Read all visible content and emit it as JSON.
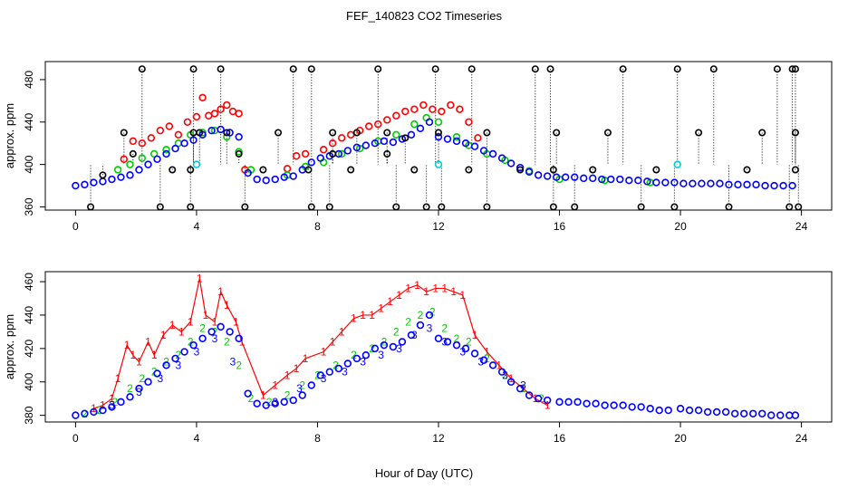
{
  "chart_data": {
    "title": "FEF_140823  CO2 Timeseries",
    "xlabel": "Hour of Day (UTC)",
    "xlim": [
      -1,
      25
    ],
    "xticks": [
      0,
      4,
      8,
      12,
      16,
      20,
      24
    ],
    "panels": [
      {
        "type": "scatter",
        "ylabel": "approx. ppm",
        "ylim": [
          357,
          497
        ],
        "yticks": [
          360,
          400,
          440,
          480
        ],
        "marker": "circle",
        "series": [
          {
            "name": "series-1",
            "color": "#ff0000",
            "x": [
              1.6,
              1.9,
              2.2,
              2.5,
              2.8,
              3.1,
              3.4,
              3.7,
              4.0,
              4.2,
              4.4,
              4.6,
              4.8,
              5.0,
              5.2,
              5.4,
              5.6,
              7.0,
              7.3,
              7.6,
              8.2,
              8.5,
              8.8,
              9.1,
              9.4,
              9.7,
              10.0,
              10.3,
              10.6,
              10.9,
              11.2,
              11.5,
              11.8,
              12.1,
              12.4,
              12.7,
              13.0,
              13.3
            ],
            "y": [
              405,
              422,
              420,
              425,
              432,
              436,
              428,
              440,
              445,
              463,
              446,
              448,
              452,
              456,
              450,
              448,
              395,
              396,
              408,
              410,
              414,
              420,
              425,
              428,
              432,
              436,
              438,
              442,
              446,
              450,
              452,
              456,
              452,
              450,
              456,
              452,
              440,
              425
            ]
          },
          {
            "name": "series-2",
            "color": "#00cc00",
            "x": [
              1.4,
              1.8,
              2.2,
              2.6,
              3.0,
              3.4,
              3.8,
              4.2,
              4.6,
              5.0,
              5.4,
              5.8,
              7.0,
              7.6,
              8.2,
              8.8,
              9.4,
              10.0,
              10.6,
              11.2,
              11.6,
              12.0,
              12.6,
              13.0,
              13.6,
              14.2,
              15.0,
              16.0,
              17.5,
              19.0
            ],
            "y": [
              395,
              400,
              406,
              410,
              414,
              420,
              428,
              430,
              432,
              426,
              412,
              395,
              390,
              398,
              402,
              410,
              415,
              422,
              428,
              438,
              444,
              440,
              426,
              418,
              410,
              404,
              394,
              386,
              385,
              383
            ]
          },
          {
            "name": "series-3",
            "color": "#0000ff",
            "x": [
              0.0,
              0.3,
              0.6,
              0.9,
              1.2,
              1.5,
              1.8,
              2.1,
              2.4,
              2.7,
              3.0,
              3.3,
              3.6,
              3.9,
              4.2,
              4.5,
              4.8,
              5.1,
              5.4,
              5.7,
              6.0,
              6.3,
              6.6,
              6.9,
              7.2,
              7.5,
              7.8,
              8.1,
              8.4,
              8.7,
              9.0,
              9.3,
              9.6,
              9.9,
              10.2,
              10.5,
              10.8,
              11.1,
              11.4,
              11.7,
              12.0,
              12.3,
              12.6,
              12.9,
              13.2,
              13.5,
              13.8,
              14.1,
              14.4,
              14.7,
              15.0,
              15.3,
              15.6,
              15.9,
              16.2,
              16.5,
              16.8,
              17.1,
              17.4,
              17.7,
              18.0,
              18.3,
              18.6,
              18.9,
              19.2,
              19.5,
              19.8,
              20.1,
              20.4,
              20.7,
              21.0,
              21.3,
              21.6,
              21.9,
              22.2,
              22.5,
              22.8,
              23.1,
              23.4,
              23.7
            ],
            "y": [
              380,
              381,
              383,
              384,
              386,
              388,
              390,
              395,
              400,
              405,
              410,
              415,
              420,
              423,
              428,
              432,
              433,
              430,
              426,
              392,
              386,
              385,
              386,
              388,
              389,
              395,
              402,
              406,
              408,
              410,
              413,
              416,
              418,
              420,
              422,
              421,
              424,
              428,
              434,
              440,
              426,
              424,
              422,
              420,
              417,
              413,
              410,
              406,
              401,
              397,
              393,
              390,
              389,
              388,
              388,
              388,
              387,
              387,
              386,
              386,
              386,
              385,
              385,
              384,
              383,
              383,
              383,
              382,
              382,
              382,
              382,
              382,
              381,
              381,
              381,
              381,
              380,
              380,
              380,
              380
            ]
          },
          {
            "name": "series-4",
            "color": "#00cccc",
            "x": [
              4.0,
              12.0,
              19.9
            ],
            "y": [
              400,
              400,
              400
            ]
          }
        ],
        "black_series": {
          "name": "series-0",
          "color": "#000000",
          "x": [
            0.5,
            0.9,
            1.6,
            1.9,
            2.2,
            2.8,
            3.2,
            3.8,
            3.8,
            3.9,
            3.9,
            4.1,
            4.8,
            5.0,
            5.4,
            5.6,
            6.2,
            6.7,
            7.2,
            7.7,
            7.8,
            7.8,
            8.4,
            8.5,
            8.5,
            9.1,
            9.3,
            10.0,
            10.3,
            10.3,
            10.6,
            10.9,
            11.2,
            11.6,
            11.9,
            12.0,
            12.1,
            13.0,
            13.1,
            13.6,
            13.6,
            14.7,
            15.2,
            15.7,
            15.8,
            15.8,
            15.9,
            16.5,
            17.1,
            17.6,
            18.1,
            18.7,
            19.2,
            19.8,
            19.9,
            20.6,
            21.1,
            21.6,
            22.2,
            22.7,
            23.2,
            23.6,
            23.7,
            23.8,
            23.8,
            23.8,
            23.9
          ],
          "y": [
            360,
            390,
            430,
            410,
            490,
            360,
            395,
            360,
            395,
            490,
            430,
            430,
            490,
            430,
            410,
            360,
            395,
            430,
            490,
            395,
            490,
            360,
            360,
            410,
            430,
            395,
            430,
            490,
            410,
            430,
            360,
            425,
            395,
            360,
            490,
            430,
            360,
            395,
            490,
            360,
            430,
            395,
            490,
            490,
            360,
            395,
            430,
            360,
            395,
            430,
            490,
            360,
            395,
            360,
            490,
            430,
            490,
            360,
            395,
            430,
            490,
            360,
            490,
            395,
            430,
            490,
            360
          ]
        }
      },
      {
        "type": "scatter",
        "ylabel": "approx. ppm",
        "ylim": [
          376,
          466
        ],
        "yticks": [
          380,
          400,
          420,
          440,
          460
        ],
        "series": [
          {
            "name": "1",
            "color": "#ff0000",
            "marker": "text",
            "x": [
              0.6,
              0.9,
              1.2,
              1.4,
              1.7,
              1.9,
              2.1,
              2.4,
              2.6,
              2.9,
              3.2,
              3.5,
              3.8,
              4.1,
              4.3,
              4.6,
              4.8,
              5.0,
              5.3,
              5.5,
              6.2,
              6.6,
              7.0,
              7.3,
              7.6,
              8.2,
              8.5,
              8.8,
              9.2,
              9.5,
              9.8,
              10.1,
              10.4,
              10.7,
              11.0,
              11.3,
              11.6,
              11.9,
              12.2,
              12.5,
              12.8,
              13.2,
              13.6,
              14.0,
              14.4,
              14.8,
              15.2,
              15.6
            ],
            "y": [
              384,
              386,
              390,
              402,
              422,
              416,
              412,
              424,
              416,
              428,
              434,
              430,
              436,
              462,
              440,
              436,
              454,
              446,
              436,
              424,
              392,
              398,
              404,
              408,
              414,
              418,
              424,
              430,
              438,
              440,
              440,
              444,
              448,
              452,
              456,
              458,
              454,
              456,
              456,
              454,
              452,
              428,
              418,
              410,
              402,
              396,
              390,
              386
            ]
          },
          {
            "name": "2",
            "color": "#00cc00",
            "marker": "text",
            "x": [
              0.3,
              0.8,
              1.3,
              1.8,
              2.2,
              2.6,
              3.0,
              3.4,
              3.8,
              4.2,
              4.6,
              5.0,
              5.4,
              5.8,
              6.4,
              7.0,
              7.5,
              8.0,
              8.6,
              9.2,
              9.8,
              10.2,
              10.6,
              11.0,
              11.4,
              11.8,
              12.2,
              12.6,
              13.0,
              13.6,
              14.2,
              14.8,
              15.4
            ],
            "y": [
              381,
              383,
              388,
              396,
              402,
              406,
              412,
              416,
              424,
              432,
              430,
              424,
              410,
              390,
              388,
              392,
              398,
              404,
              410,
              416,
              420,
              424,
              430,
              436,
              440,
              442,
              432,
              426,
              424,
              414,
              404,
              396,
              390
            ]
          },
          {
            "name": "3",
            "color": "#0000ff",
            "marker": "text",
            "x": [
              1.2,
              2.1,
              2.8,
              3.4,
              4.0,
              4.6,
              5.2,
              6.6,
              7.4,
              8.2,
              8.9,
              9.5,
              10.1,
              10.7,
              11.2,
              11.7,
              12.2,
              12.8,
              13.4,
              14.2,
              14.8
            ],
            "y": [
              386,
              394,
              402,
              410,
              418,
              426,
              412,
              388,
              396,
              402,
              406,
              412,
              416,
              420,
              428,
              432,
              424,
              418,
              412,
              404,
              398
            ]
          },
          {
            "name": "circles",
            "color": "#0000ff",
            "marker": "circle",
            "x": [
              0.0,
              0.3,
              0.6,
              0.9,
              1.2,
              1.5,
              1.8,
              2.1,
              2.4,
              2.7,
              3.0,
              3.3,
              3.6,
              3.9,
              4.2,
              4.5,
              4.8,
              5.1,
              5.4,
              5.7,
              6.0,
              6.3,
              6.6,
              6.9,
              7.2,
              7.5,
              7.8,
              8.1,
              8.4,
              8.7,
              9.0,
              9.3,
              9.6,
              9.9,
              10.2,
              10.5,
              10.8,
              11.1,
              11.4,
              11.7,
              12.0,
              12.3,
              12.6,
              12.9,
              13.2,
              13.5,
              13.8,
              14.1,
              14.4,
              14.7,
              15.0,
              15.3,
              15.6,
              16.0,
              16.3,
              16.6,
              16.9,
              17.2,
              17.5,
              17.8,
              18.1,
              18.4,
              18.7,
              19.0,
              19.3,
              19.6,
              20.0,
              20.3,
              20.6,
              20.9,
              21.2,
              21.5,
              21.8,
              22.1,
              22.4,
              22.7,
              23.0,
              23.3,
              23.6,
              23.8
            ],
            "y": [
              380,
              381,
              382,
              383,
              385,
              388,
              391,
              396,
              400,
              405,
              410,
              414,
              418,
              422,
              426,
              430,
              433,
              430,
              426,
              393,
              387,
              386,
              387,
              388,
              389,
              392,
              398,
              404,
              406,
              408,
              411,
              414,
              416,
              420,
              422,
              421,
              424,
              428,
              434,
              440,
              426,
              424,
              422,
              420,
              417,
              413,
              410,
              406,
              400,
              396,
              392,
              390,
              389,
              388,
              388,
              388,
              387,
              387,
              386,
              386,
              386,
              385,
              385,
              384,
              383,
              383,
              384,
              383,
              383,
              382,
              382,
              382,
              381,
              381,
              381,
              381,
              380,
              380,
              380,
              380
            ]
          }
        ]
      }
    ]
  }
}
